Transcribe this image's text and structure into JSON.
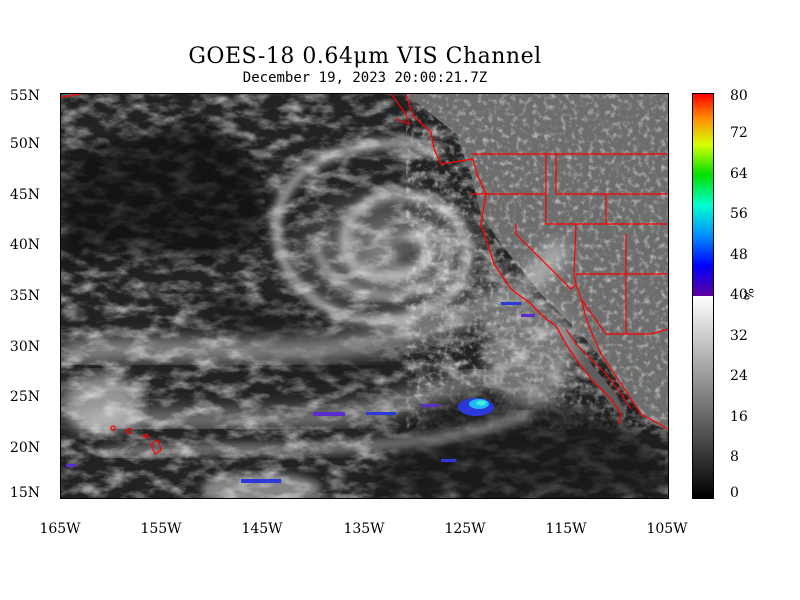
{
  "title": {
    "satellite": "GOES-18",
    "main": "GOES-18  0.64μm VIS Channel",
    "datetime": "December 19,  2023 20:00:21.7Z"
  },
  "map": {
    "lat_labels": [
      "55N",
      "50N",
      "45N",
      "40N",
      "35N",
      "30N",
      "25N",
      "20N",
      "15N"
    ],
    "lon_labels": [
      "165W",
      "155W",
      "145W",
      "135W",
      "125W",
      "115W",
      "105W"
    ],
    "lat_range": [
      15,
      55
    ],
    "lon_range": [
      -165,
      -105
    ],
    "boundary_color": "#ff0000",
    "features": [
      "north-pacific-cyclone",
      "cloud-bands",
      "hawaiian-islands",
      "west-coast-north-america"
    ]
  },
  "colorbar": {
    "ticks": [
      "80",
      "72",
      "64",
      "56",
      "48",
      "40",
      "32",
      "24",
      "16",
      "8",
      "0"
    ],
    "unit": "%",
    "range": [
      0,
      80
    ],
    "grayscale_below": 40
  }
}
